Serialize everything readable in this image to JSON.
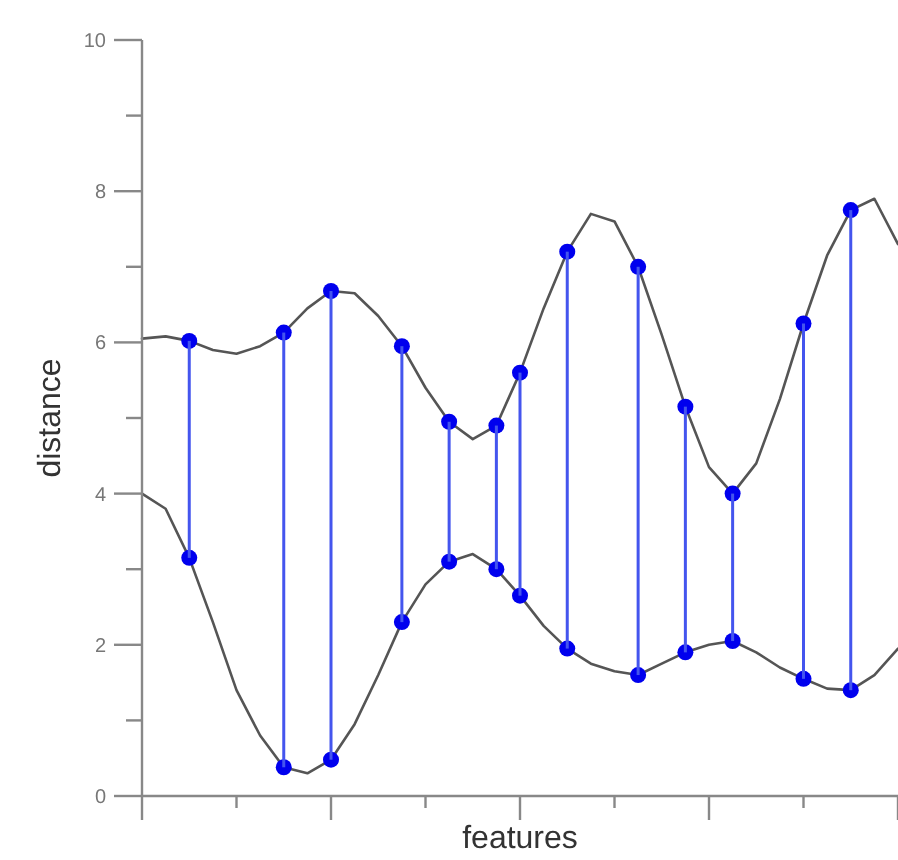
{
  "chart_data": {
    "type": "line",
    "xlabel": "features",
    "ylabel": "distance",
    "ylim": [
      0,
      10
    ],
    "categories": [
      null,
      null,
      null,
      null,
      null,
      null,
      null,
      null,
      null,
      null,
      null,
      null,
      null,
      null,
      null,
      null,
      null,
      null,
      null,
      null,
      null,
      null,
      null,
      null,
      null,
      null,
      null,
      null,
      null,
      null,
      null,
      null,
      null
    ],
    "yticks": [
      0,
      {
        "value": 1,
        "label": null
      },
      2,
      {
        "value": 3,
        "label": null
      },
      4,
      {
        "value": 5,
        "label": null
      },
      6,
      {
        "value": 7,
        "label": null
      },
      8,
      {
        "value": 9,
        "label": null
      },
      10
    ],
    "tick_labels": "y",
    "series": [
      {
        "color": "#555555",
        "marker": "none",
        "line_style": "solid",
        "values": [
          6.05,
          6.08,
          6.02,
          5.9,
          5.85,
          5.95,
          6.13,
          6.45,
          6.68,
          6.65,
          6.35,
          5.95,
          5.4,
          4.95,
          4.72,
          4.9,
          5.6,
          6.45,
          7.2,
          7.7,
          7.6,
          7.0,
          6.1,
          5.15,
          4.35,
          4.0,
          4.4,
          5.25,
          6.25,
          7.15,
          7.75,
          7.9,
          7.3
        ]
      },
      {
        "color": "#555555",
        "marker": "none",
        "line_style": "solid",
        "values": [
          4.0,
          3.8,
          3.15,
          2.3,
          1.4,
          0.8,
          0.38,
          0.3,
          0.48,
          0.95,
          1.6,
          2.3,
          2.8,
          3.1,
          3.2,
          3.0,
          2.65,
          2.25,
          1.95,
          1.75,
          1.65,
          1.6,
          1.75,
          1.9,
          2.0,
          2.05,
          1.9,
          1.7,
          1.55,
          1.42,
          1.4,
          1.6,
          1.95
        ]
      },
      {
        "type": "scatter",
        "color": "#0000ee",
        "marker": "circle",
        "values": [
          null,
          null,
          6.02,
          null,
          null,
          null,
          6.13,
          null,
          6.68,
          null,
          null,
          5.95,
          null,
          4.95,
          null,
          4.9,
          5.6,
          null,
          7.2,
          null,
          null,
          7.0,
          null,
          5.15,
          null,
          4.0,
          null,
          null,
          6.25,
          null,
          7.75,
          null,
          null
        ]
      },
      {
        "type": "scatter",
        "color": "#0000ee",
        "marker": "circle",
        "values": [
          null,
          null,
          3.15,
          null,
          null,
          null,
          0.38,
          null,
          0.48,
          null,
          null,
          2.3,
          null,
          3.1,
          null,
          3.0,
          2.65,
          null,
          1.95,
          null,
          null,
          1.6,
          null,
          1.9,
          null,
          2.05,
          null,
          null,
          1.55,
          null,
          1.4,
          null,
          null
        ]
      },
      {
        "type": "bar",
        "color": "#4455ee",
        "base": [
          null,
          null,
          3.15,
          null,
          null,
          null,
          0.38,
          null,
          0.48,
          null,
          null,
          2.3,
          null,
          3.1,
          null,
          3.0,
          2.65,
          null,
          1.95,
          null,
          null,
          1.6,
          null,
          1.9,
          null,
          2.05,
          null,
          null,
          1.55,
          null,
          1.4,
          null,
          null
        ],
        "values": [
          null,
          null,
          2.87,
          null,
          null,
          null,
          5.75,
          null,
          6.2,
          null,
          null,
          3.65,
          null,
          1.85,
          null,
          1.9,
          2.95,
          null,
          5.25,
          null,
          null,
          5.4,
          null,
          3.25,
          null,
          1.95,
          null,
          null,
          4.7,
          null,
          6.35,
          null,
          null
        ]
      }
    ]
  }
}
